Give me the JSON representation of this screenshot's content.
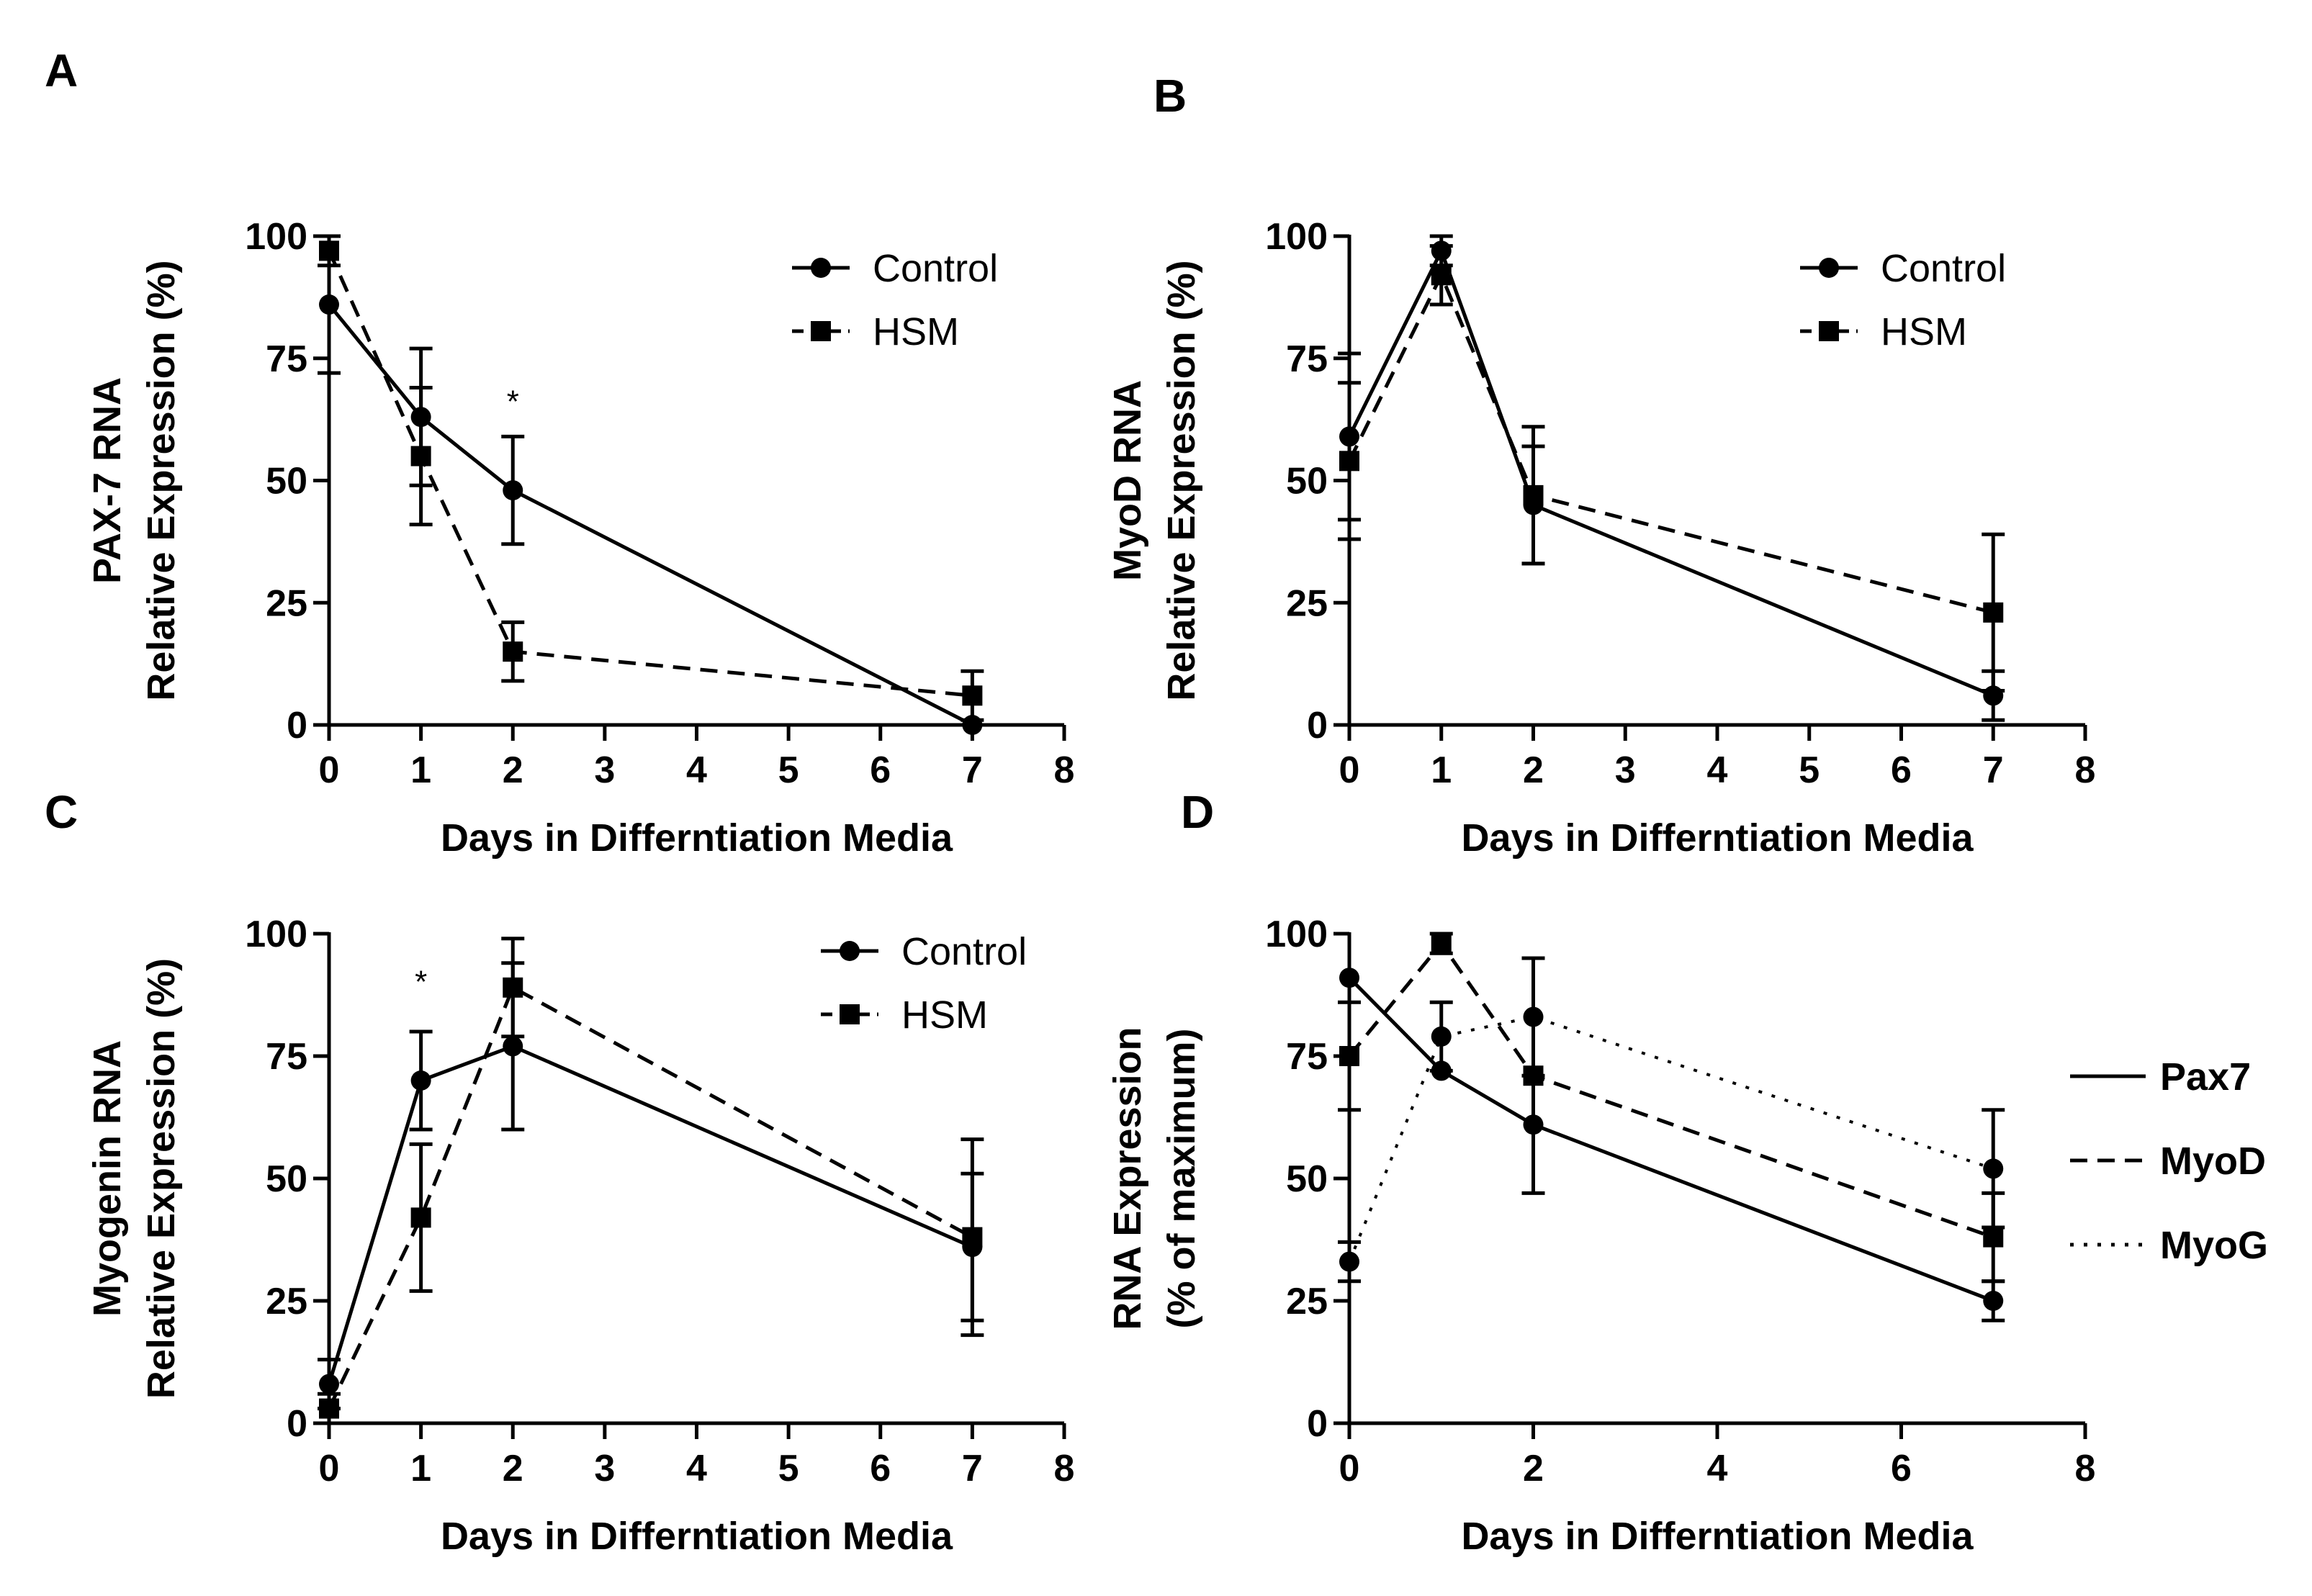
{
  "chart_data": [
    {
      "panel": "A",
      "type": "line",
      "xlabel": "Days in Differntiation Media",
      "ylabel": [
        "PAX-7 RNA",
        "Relative Expression (%)"
      ],
      "xlim": [
        0,
        8
      ],
      "ylim": [
        0,
        100
      ],
      "xticks": [
        0,
        1,
        2,
        3,
        4,
        5,
        6,
        7,
        8
      ],
      "yticks": [
        0,
        25,
        50,
        75,
        100
      ],
      "legend": "top-right",
      "legend_bold": false,
      "series": [
        {
          "name": "Control",
          "dash": "solid",
          "marker": "circle",
          "x": [
            0,
            1,
            2,
            7
          ],
          "y": [
            86,
            63,
            48,
            0
          ],
          "err": [
            14,
            14,
            11,
            0
          ]
        },
        {
          "name": "HSM",
          "dash": "dashed",
          "marker": "square",
          "x": [
            0,
            1,
            2,
            7
          ],
          "y": [
            97,
            55,
            15,
            6
          ],
          "err": [
            3,
            14,
            6,
            5
          ]
        }
      ],
      "annotations": [
        {
          "text": "*",
          "x": 2,
          "y": 64
        }
      ]
    },
    {
      "panel": "B",
      "type": "line",
      "xlabel": "Days in Differntiation Media",
      "ylabel": [
        "MyoD RNA",
        "Relative Expression (%)"
      ],
      "xlim": [
        0,
        8
      ],
      "ylim": [
        0,
        100
      ],
      "xticks": [
        0,
        1,
        2,
        3,
        4,
        5,
        6,
        7,
        8
      ],
      "yticks": [
        0,
        25,
        50,
        75,
        100
      ],
      "legend": "top-right",
      "legend_bold": false,
      "series": [
        {
          "name": "Control",
          "dash": "solid",
          "marker": "circle",
          "x": [
            0,
            1,
            2,
            7
          ],
          "y": [
            59,
            97,
            45,
            6
          ],
          "err": [
            17,
            3,
            12,
            5
          ]
        },
        {
          "name": "HSM",
          "dash": "dashed",
          "marker": "square",
          "x": [
            0,
            1,
            2,
            7
          ],
          "y": [
            54,
            92,
            47,
            23
          ],
          "err": [
            16,
            6,
            14,
            16
          ]
        }
      ],
      "annotations": []
    },
    {
      "panel": "C",
      "type": "line",
      "xlabel": "Days in Differntiation Media",
      "ylabel": [
        "Myogenin RNA",
        "Relative Expression (%)"
      ],
      "xlim": [
        0,
        8
      ],
      "ylim": [
        0,
        100
      ],
      "xticks": [
        0,
        1,
        2,
        3,
        4,
        5,
        6,
        7,
        8
      ],
      "yticks": [
        0,
        25,
        50,
        75,
        100
      ],
      "legend": "top-right",
      "legend_bold": false,
      "series": [
        {
          "name": "Control",
          "dash": "solid",
          "marker": "circle",
          "x": [
            0,
            1,
            2,
            7
          ],
          "y": [
            8,
            70,
            77,
            36
          ],
          "err": [
            5,
            10,
            17,
            15
          ]
        },
        {
          "name": "HSM",
          "dash": "dashed",
          "marker": "square",
          "x": [
            0,
            1,
            2,
            7
          ],
          "y": [
            3,
            42,
            89,
            38
          ],
          "err": [
            3,
            15,
            10,
            20
          ]
        }
      ],
      "annotations": [
        {
          "text": "*",
          "x": 1,
          "y": 88
        }
      ]
    },
    {
      "panel": "D",
      "type": "line",
      "xlabel": "Days in Differntiation Media",
      "ylabel": [
        "RNA Expression",
        "(% of maximum)"
      ],
      "xlim": [
        0,
        8
      ],
      "ylim": [
        0,
        100
      ],
      "xticks": [
        0,
        2,
        4,
        6,
        8
      ],
      "yticks": [
        0,
        25,
        50,
        75,
        100
      ],
      "legend": "right",
      "legend_bold": true,
      "series": [
        {
          "name": "Pax7",
          "dash": "solid",
          "marker": "circle",
          "x": [
            0,
            1,
            2,
            7
          ],
          "y": [
            91,
            72,
            61,
            25
          ],
          "err": [
            0,
            0,
            0,
            4
          ]
        },
        {
          "name": "MyoD",
          "dash": "dashed",
          "marker": "square",
          "x": [
            0,
            1,
            2,
            7
          ],
          "y": [
            75,
            98,
            71,
            38
          ],
          "err": [
            11,
            2,
            24,
            9
          ]
        },
        {
          "name": "MyoG",
          "dash": "dotted",
          "marker": "circle",
          "x": [
            0,
            1,
            2,
            7
          ],
          "y": [
            33,
            79,
            83,
            52
          ],
          "err": [
            4,
            7,
            12,
            12
          ]
        }
      ],
      "annotations": []
    }
  ]
}
